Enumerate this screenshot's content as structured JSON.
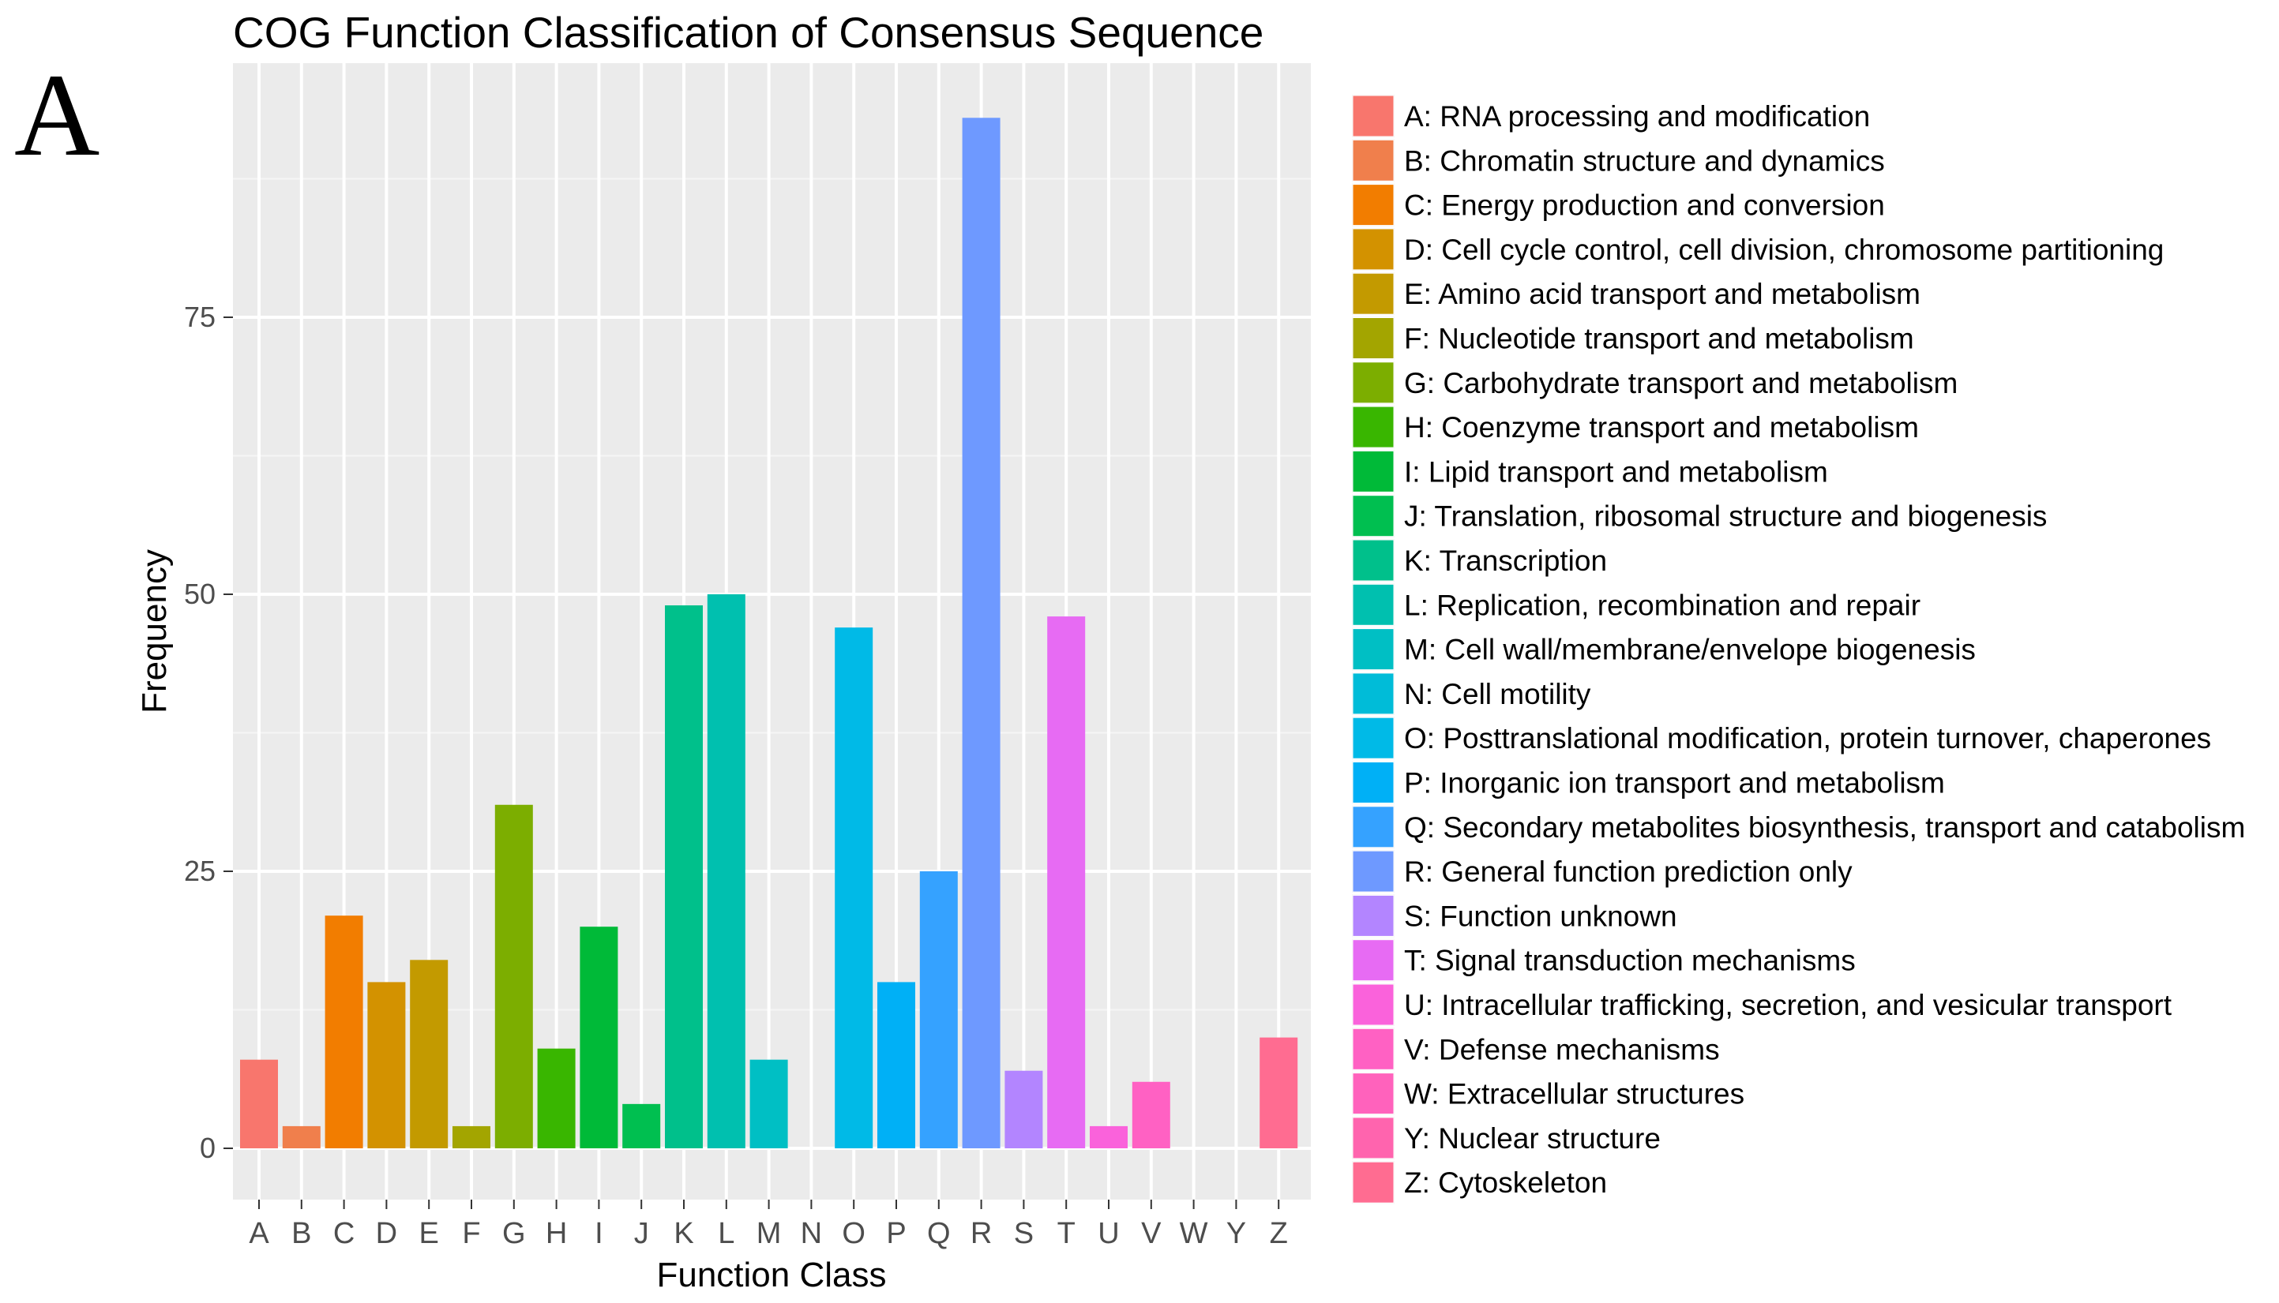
{
  "panel_label": "A",
  "chart_data": {
    "type": "bar",
    "title": "COG Function Classification of Consensus Sequence",
    "xlabel": "Function Class",
    "ylabel": "Frequency",
    "ylim": [
      0,
      97
    ],
    "yticks": [
      0,
      25,
      50,
      75
    ],
    "grid": true,
    "legend_position": "right",
    "categories": [
      "A",
      "B",
      "C",
      "D",
      "E",
      "F",
      "G",
      "H",
      "I",
      "J",
      "K",
      "L",
      "M",
      "N",
      "O",
      "P",
      "Q",
      "R",
      "S",
      "T",
      "U",
      "V",
      "W",
      "Y",
      "Z"
    ],
    "values": [
      8,
      2,
      21,
      15,
      17,
      2,
      31,
      9,
      20,
      4,
      49,
      50,
      8,
      0,
      47,
      15,
      25,
      93,
      7,
      48,
      2,
      6,
      0,
      0,
      10
    ],
    "colors": [
      "#F8766D",
      "#F07F4C",
      "#F27D00",
      "#D39200",
      "#C39A00",
      "#A3A500",
      "#7CAE00",
      "#39B600",
      "#00BA38",
      "#00BF50",
      "#00C08B",
      "#00C0AF",
      "#00BFC4",
      "#00BCD8",
      "#00BAE7",
      "#00B0F6",
      "#35A2FF",
      "#6E99FF",
      "#B385FF",
      "#E76BF3",
      "#FA62DB",
      "#FF61C3",
      "#FF62BC",
      "#FF64AE",
      "#FF6C91"
    ],
    "legend": [
      "A: RNA processing and modification",
      "B: Chromatin structure and dynamics",
      "C: Energy production and conversion",
      "D: Cell cycle control, cell division, chromosome partitioning",
      "E: Amino acid transport and metabolism",
      "F: Nucleotide transport and metabolism",
      "G: Carbohydrate transport and metabolism",
      "H: Coenzyme transport and metabolism",
      "I: Lipid transport and metabolism",
      "J: Translation, ribosomal structure and biogenesis",
      "K: Transcription",
      "L: Replication, recombination and repair",
      "M: Cell wall/membrane/envelope biogenesis",
      "N: Cell motility",
      "O: Posttranslational modification, protein turnover, chaperones",
      "P: Inorganic ion transport and metabolism",
      "Q: Secondary metabolites biosynthesis, transport and catabolism",
      "R: General function prediction only",
      "S: Function unknown",
      "T: Signal transduction mechanisms",
      "U: Intracellular trafficking, secretion, and vesicular transport",
      "V: Defense mechanisms",
      "W: Extracellular structures",
      "Y: Nuclear structure",
      "Z: Cytoskeleton"
    ]
  }
}
